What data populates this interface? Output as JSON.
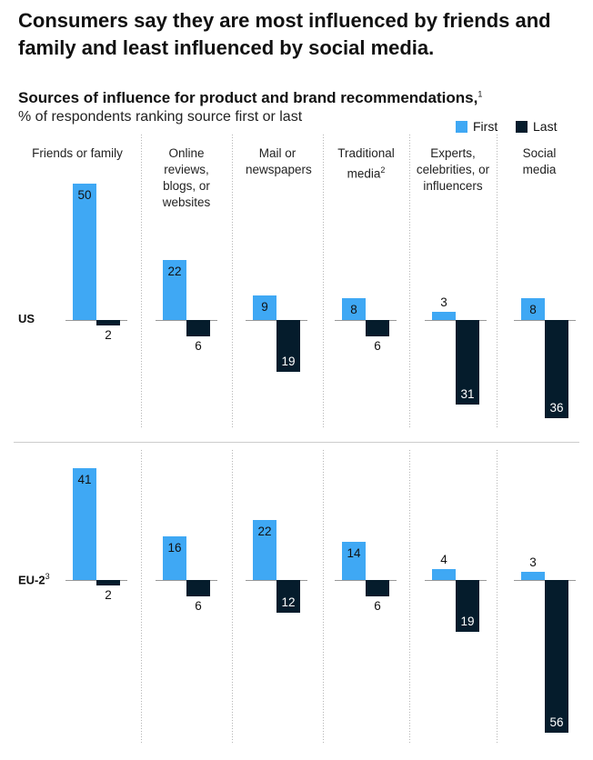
{
  "headline": "Consumers say they are most influenced by friends and family and least influenced by social media.",
  "subhead": "Sources of influence for product and brand recommendations,",
  "subhead_note": "1",
  "subtitle": "% of respondents ranking source first or last",
  "legend": {
    "first": "First",
    "last": "Last"
  },
  "colors": {
    "first": "#3fa8f4",
    "last": "#051c2c"
  },
  "chart_data": {
    "type": "bar",
    "subtype": "diverging-grouped",
    "title": "Sources of influence for product and brand recommendations,",
    "subtitle": "% of respondents ranking source first or last",
    "categories": [
      {
        "label": "Friends or family",
        "note": ""
      },
      {
        "label": "Online reviews, blogs, or websites",
        "note": ""
      },
      {
        "label": "Mail or newspapers",
        "note": ""
      },
      {
        "label": "Traditional media",
        "note": "2"
      },
      {
        "label": "Experts, celebrities, or influencers",
        "note": ""
      },
      {
        "label": "Social media",
        "note": ""
      }
    ],
    "series": [
      {
        "name": "First",
        "direction": "up"
      },
      {
        "name": "Last",
        "direction": "down"
      }
    ],
    "panels": [
      {
        "region": "US",
        "note": "",
        "first": [
          50,
          22,
          9,
          8,
          3,
          8
        ],
        "last": [
          2,
          6,
          19,
          6,
          31,
          36
        ]
      },
      {
        "region": "EU-2",
        "note": "3",
        "first": [
          41,
          16,
          22,
          14,
          4,
          3
        ],
        "last": [
          2,
          6,
          12,
          6,
          19,
          56
        ]
      }
    ]
  }
}
